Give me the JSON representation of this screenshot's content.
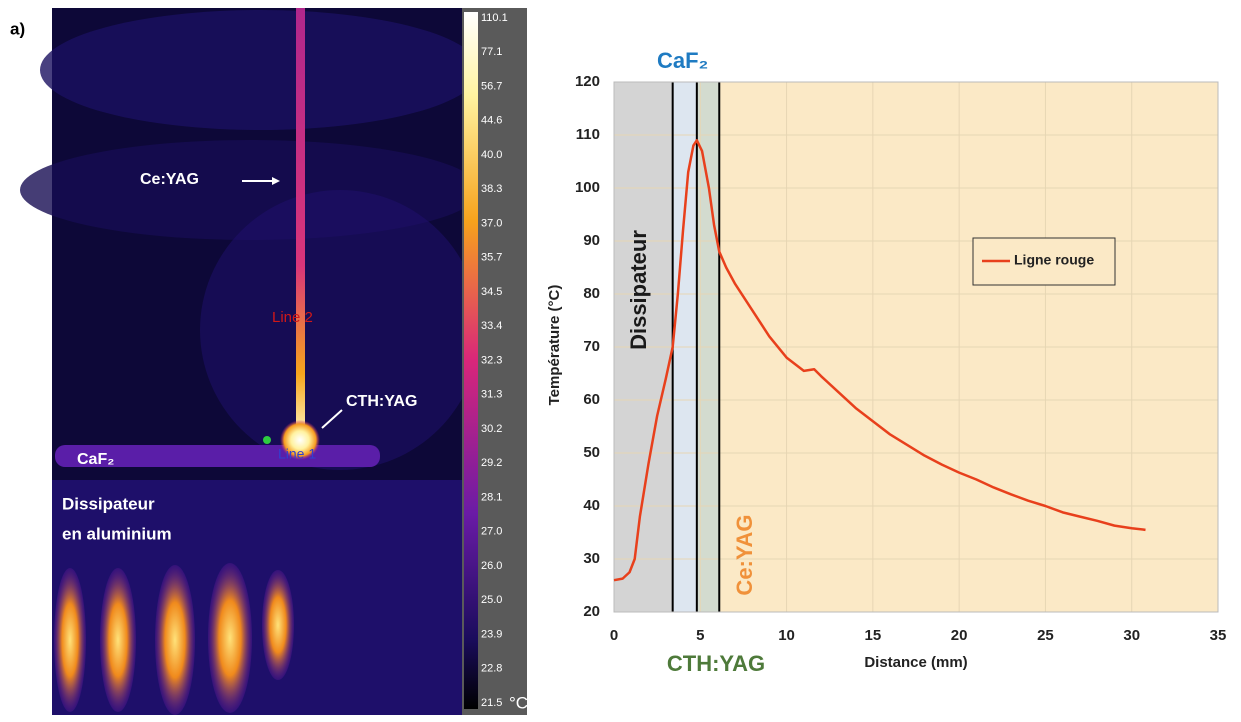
{
  "figure_label": "a)",
  "thermal_image": {
    "colorbar_labels": [
      "110.1",
      "77.1",
      "56.7",
      "44.6",
      "40.0",
      "38.3",
      "37.0",
      "35.7",
      "34.5",
      "33.4",
      "32.3",
      "31.3",
      "30.2",
      "29.2",
      "28.1",
      "27.0",
      "26.0",
      "25.0",
      "23.9",
      "22.8",
      "21.5"
    ],
    "colorbar_unit": "°C",
    "annotations": {
      "ce_yag": "Ce:YAG",
      "line2": "Line 2",
      "cth_yag": "CTH:YAG",
      "caf2": "CaF₂",
      "line1": "Line 1",
      "dissipateur": [
        "Dissipateur",
        "en aluminium"
      ]
    }
  },
  "chart_data": {
    "type": "line",
    "x_label": "Distance (mm)",
    "y_label": "Température (°C)",
    "xlim": [
      0,
      35
    ],
    "ylim": [
      20,
      120
    ],
    "xticks": [
      0,
      5,
      10,
      15,
      20,
      25,
      30,
      35
    ],
    "yticks": [
      20,
      30,
      40,
      50,
      60,
      70,
      80,
      90,
      100,
      110,
      120
    ],
    "grid": true,
    "regions": [
      {
        "name": "Dissipateur",
        "color": "#d4d4d4",
        "label_color": "#1a1a1a",
        "xlim": [
          0,
          3.4
        ]
      },
      {
        "name": "CaF₂",
        "color": "#dde6f0",
        "label_color": "#1f7bc2",
        "xlim": [
          3.4,
          4.8
        ]
      },
      {
        "name": "CTH:YAG",
        "color": "#d3dbcf",
        "label_color": "#4e7a3a",
        "xlim": [
          4.8,
          6.1
        ]
      },
      {
        "name": "Ce:YAG",
        "color": "#fbe9c6",
        "label_color": "#f0913a",
        "xlim": [
          6.1,
          35
        ]
      }
    ],
    "x": [
      0,
      0.5,
      0.9,
      1.2,
      1.5,
      2,
      2.5,
      3,
      3.4,
      3.7,
      4,
      4.3,
      4.6,
      4.8,
      5.1,
      5.5,
      5.8,
      6.1,
      6.5,
      7,
      8,
      9,
      10,
      11,
      11.6,
      12,
      13,
      14,
      15,
      16,
      17,
      18,
      19,
      20,
      21,
      22,
      23,
      24,
      25,
      26,
      27,
      28,
      29,
      30,
      30.8
    ],
    "series": [
      {
        "name": "Ligne rouge",
        "color": "#e8401c",
        "values": [
          26,
          26.3,
          27.5,
          30,
          38,
          48,
          57,
          64,
          70,
          80,
          92,
          103,
          108,
          109,
          107,
          100,
          93,
          88,
          85,
          82,
          77,
          72,
          68,
          65.5,
          65.8,
          64.5,
          61.5,
          58.5,
          56,
          53.5,
          51.5,
          49.5,
          47.8,
          46.3,
          45,
          43.5,
          42.2,
          41,
          40,
          38.8,
          38,
          37.2,
          36.3,
          35.8,
          35.5
        ]
      }
    ],
    "legend": "right"
  }
}
